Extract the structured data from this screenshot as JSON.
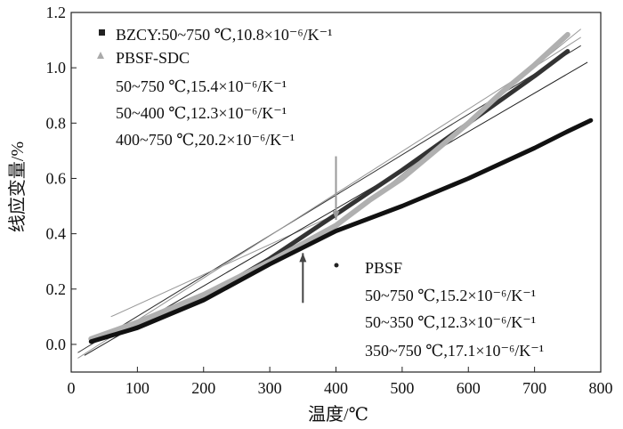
{
  "chart_data": {
    "type": "line",
    "xlabel": "温度/℃",
    "ylabel": "线应变量/%",
    "xlim": [
      0,
      800
    ],
    "ylim": [
      -0.1,
      1.2
    ],
    "x_ticks": [
      0,
      100,
      200,
      300,
      400,
      500,
      600,
      700,
      800
    ],
    "y_ticks": [
      0.0,
      0.2,
      0.4,
      0.6,
      0.8,
      1.0,
      1.2
    ],
    "y_tick_labels": [
      "0.0",
      "0.2",
      "0.4",
      "0.6",
      "0.8",
      "1.0",
      "1.2"
    ],
    "grid": false,
    "series": [
      {
        "name": "BZCY:50~750 ℃,10.8×10⁻⁶/K⁻¹",
        "color": "#333333",
        "marker": "square",
        "points": [
          [
            30,
            0.02
          ],
          [
            100,
            0.07
          ],
          [
            200,
            0.17
          ],
          [
            300,
            0.31
          ],
          [
            400,
            0.47
          ],
          [
            500,
            0.63
          ],
          [
            600,
            0.8
          ],
          [
            700,
            0.97
          ],
          [
            750,
            1.06
          ]
        ]
      },
      {
        "name": "PBSF-SDC",
        "color": "#b0b0b0",
        "marker": "triangle",
        "points": [
          [
            30,
            0.02
          ],
          [
            100,
            0.08
          ],
          [
            200,
            0.18
          ],
          [
            300,
            0.3
          ],
          [
            400,
            0.43
          ],
          [
            450,
            0.52
          ],
          [
            500,
            0.6
          ],
          [
            550,
            0.7
          ],
          [
            600,
            0.8
          ],
          [
            650,
            0.91
          ],
          [
            700,
            1.01
          ],
          [
            750,
            1.12
          ]
        ]
      },
      {
        "name": "PBSF",
        "color": "#111111",
        "marker": "circle",
        "points": [
          [
            30,
            0.01
          ],
          [
            100,
            0.06
          ],
          [
            200,
            0.16
          ],
          [
            300,
            0.29
          ],
          [
            350,
            0.35
          ],
          [
            400,
            0.41
          ],
          [
            500,
            0.5
          ],
          [
            600,
            0.6
          ],
          [
            700,
            0.71
          ],
          [
            750,
            0.77
          ],
          [
            785,
            0.81
          ]
        ]
      }
    ],
    "fit_lines": [
      {
        "color": "#333333",
        "points": [
          [
            10,
            -0.03
          ],
          [
            770,
            1.08
          ]
        ]
      },
      {
        "color": "#999999",
        "points": [
          [
            10,
            -0.05
          ],
          [
            770,
            1.11
          ]
        ]
      },
      {
        "color": "#999999",
        "points": [
          [
            60,
            0.1
          ],
          [
            400,
            0.47
          ]
        ]
      },
      {
        "color": "#999999",
        "points": [
          [
            400,
            0.42
          ],
          [
            770,
            1.14
          ]
        ]
      },
      {
        "color": "#222222",
        "points": [
          [
            20,
            -0.04
          ],
          [
            780,
            1.02
          ]
        ]
      }
    ],
    "legend_pbsf_sdc": {
      "lines": [
        "50~750 ℃,15.4×10⁻⁶/K⁻¹",
        "50~400 ℃,12.3×10⁻⁶/K⁻¹",
        "400~750 ℃,20.2×10⁻⁶/K⁻¹"
      ]
    },
    "legend_pbsf": {
      "lines": [
        "50~750 ℃,15.2×10⁻⁶/K⁻¹",
        "50~350 ℃,12.3×10⁻⁶/K⁻¹",
        "350~750 ℃,17.1×10⁻⁶/K⁻¹"
      ]
    },
    "arrows": [
      {
        "color": "#999999",
        "from": [
          400,
          0.68
        ],
        "to": [
          400,
          0.45
        ]
      },
      {
        "color": "#444444",
        "from": [
          350,
          0.15
        ],
        "to": [
          350,
          0.33
        ]
      }
    ]
  }
}
